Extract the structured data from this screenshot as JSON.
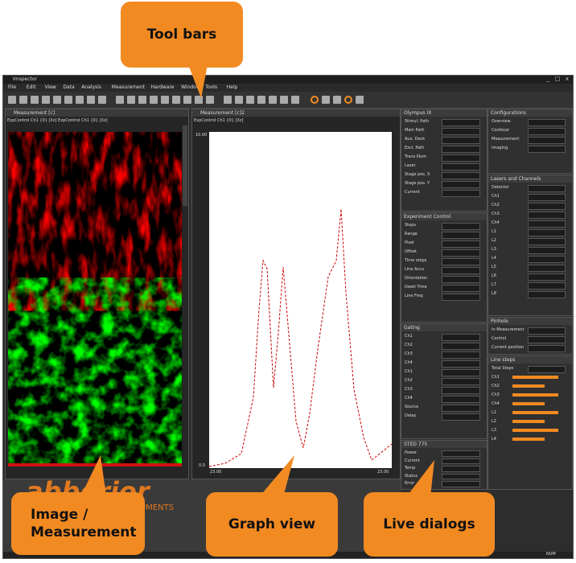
{
  "callouts": {
    "toolbars": "Tool bars",
    "image": "Image / Measurement",
    "graph": "Graph view",
    "live": "Live dialogs"
  },
  "app": {
    "title": "Imspector",
    "menu": [
      "File",
      "Edit",
      "View",
      "Data",
      "Analysis",
      "Measurement",
      "Hardware",
      "Window",
      "Tools",
      "Help"
    ],
    "logo": "abberior",
    "logo_sub": "INSTRUMENTS",
    "status": "NUM"
  },
  "windows": [
    {
      "title": "Measurement [c]",
      "tabs": "ExpControl Ch1 {0} [Xz]   ExpControl Ch1 {0} [Xz]"
    },
    {
      "title": "Measurement [c]2",
      "tabs": "ExpControl Ch1 {0} [Xz]"
    }
  ],
  "graph": {
    "y_top": "10.00",
    "y_bottom": "0.0",
    "x_left": "23.00",
    "x_right": "23.00"
  },
  "panels": [
    {
      "title": "Olympus IX",
      "fields": [
        "Stimul. Path",
        "Main Path",
        "Aux. Deck",
        "Excl. Path",
        "Trans Illum",
        "Laser",
        "Stage pos. X",
        "Stage pos. Y",
        "Current"
      ]
    },
    {
      "title": "Experiment Control",
      "fields": [
        "Steps",
        "Range",
        "Pixel",
        "Offset",
        "Time steps",
        "Line Accu",
        "Orientation",
        "Dwell Time",
        "Line Freq"
      ]
    },
    {
      "title": "Gating",
      "fields": [
        "Ch1",
        "Ch2",
        "Ch3",
        "Ch4",
        "Ch1",
        "Ch2",
        "Ch3",
        "Ch4",
        "Source",
        "Delay"
      ]
    },
    {
      "title": "STED 775",
      "fields": [
        "Power",
        "Current",
        "Temp",
        "Status",
        "Error"
      ]
    },
    {
      "title": "Configurations",
      "fields": [
        "Overview",
        "Confocal",
        "Measurement",
        "Imaging"
      ]
    },
    {
      "title": "Lasers and Channels",
      "fields": [
        "Detector",
        "Ch1",
        "Ch2",
        "Ch3",
        "Ch4",
        "L1",
        "L2",
        "L3",
        "L4",
        "L5",
        "L6",
        "L7",
        "L8"
      ]
    },
    {
      "title": "Pinhole",
      "fields": [
        "In Measurement",
        "Control",
        "Current position"
      ]
    },
    {
      "title": "Line steps",
      "fields": [
        "Total Steps",
        "Ch1",
        "Ch2",
        "Ch3",
        "Ch4",
        "L1",
        "L2",
        "L3",
        "L4"
      ]
    }
  ]
}
